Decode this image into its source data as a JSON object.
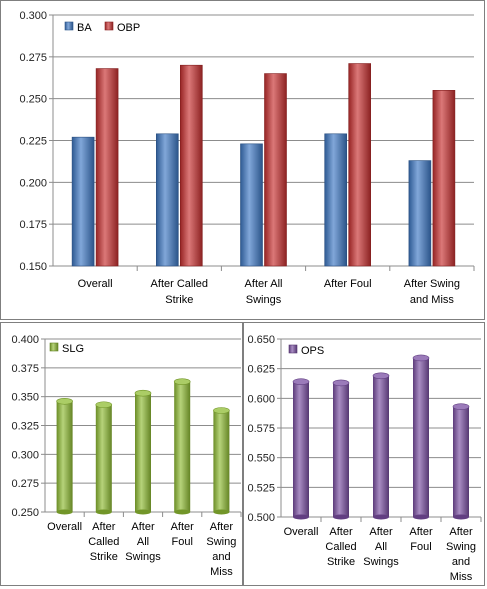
{
  "chart_data": [
    {
      "type": "bar",
      "categories": [
        [
          "Overall"
        ],
        [
          "After Called",
          "Strike"
        ],
        [
          "After All",
          "Swings"
        ],
        [
          "After Foul"
        ],
        [
          "After Swing",
          "and Miss"
        ]
      ],
      "series": [
        {
          "name": "BA",
          "values": [
            0.227,
            0.229,
            0.223,
            0.229,
            0.213
          ],
          "color": "#3d78c4"
        },
        {
          "name": "OBP",
          "values": [
            0.268,
            0.27,
            0.265,
            0.271,
            0.255
          ],
          "color": "#c83030"
        }
      ],
      "ylim": [
        0.15,
        0.3
      ],
      "yticks": [
        "0.150",
        "0.175",
        "0.200",
        "0.225",
        "0.250",
        "0.275",
        "0.300"
      ],
      "grid": true,
      "legend": "top-left",
      "bar_style": "gradient"
    },
    {
      "type": "bar",
      "categories": [
        [
          "Overall"
        ],
        [
          "After",
          "Called",
          "Strike"
        ],
        [
          "After",
          "All",
          "Swings"
        ],
        [
          "After",
          "Foul"
        ],
        [
          "After",
          "Swing",
          "and",
          "Miss"
        ]
      ],
      "series": [
        {
          "name": "SLG",
          "values": [
            0.346,
            0.343,
            0.353,
            0.363,
            0.338
          ],
          "color": "#8fbc33"
        }
      ],
      "ylim": [
        0.25,
        0.4
      ],
      "yticks": [
        "0.250",
        "0.275",
        "0.300",
        "0.325",
        "0.350",
        "0.375",
        "0.400"
      ],
      "grid": true,
      "legend": "top-left",
      "bar_style": "cylinder"
    },
    {
      "type": "bar",
      "categories": [
        [
          "Overall"
        ],
        [
          "After",
          "Called",
          "Strike"
        ],
        [
          "After",
          "All",
          "Swings"
        ],
        [
          "After",
          "Foul"
        ],
        [
          "After",
          "Swing",
          "and",
          "Miss"
        ]
      ],
      "series": [
        {
          "name": "OPS",
          "values": [
            0.614,
            0.613,
            0.619,
            0.634,
            0.593
          ],
          "color": "#7a4fa3"
        }
      ],
      "ylim": [
        0.5,
        0.65
      ],
      "yticks": [
        "0.500",
        "0.525",
        "0.550",
        "0.575",
        "0.600",
        "0.625",
        "0.650"
      ],
      "grid": true,
      "legend": "top-left",
      "bar_style": "cylinder"
    }
  ]
}
